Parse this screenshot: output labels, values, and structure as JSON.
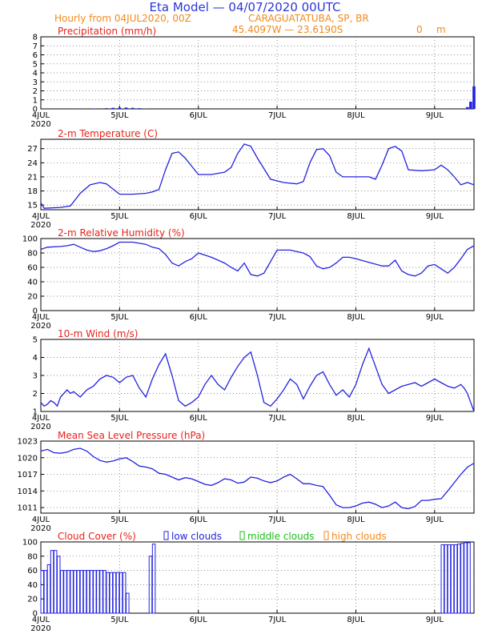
{
  "header": {
    "title": "Eta Model — 04/07/2020 00UTC",
    "subtitle": "Hourly from 04JUL2020, 00Z",
    "location": "CARAGUATATUBA, SP, BR",
    "coords": "45.4097W — 23.6190S",
    "elevation": "0",
    "elevation_unit": "m"
  },
  "colors": {
    "title_blue": "#2b36d9",
    "header_orange": "#f08a1c",
    "panel_red": "#e8231a",
    "series_blue": "#2323e0",
    "low_clouds": "#2323e0",
    "middle_clouds": "#18c018",
    "high_clouds": "#f08a1c"
  },
  "x_axis": {
    "ticks": [
      "4JUL",
      "5JUL",
      "6JUL",
      "7JUL",
      "8JUL",
      "9JUL"
    ],
    "year": "2020",
    "range_hours": [
      0,
      132
    ]
  },
  "chart_data": [
    {
      "type": "bar",
      "title": "Precipitation (mm/h)",
      "ylim": [
        0,
        8
      ],
      "yticks": [
        0,
        1,
        2,
        3,
        4,
        5,
        6,
        7,
        8
      ],
      "x": [
        0,
        4,
        8,
        12,
        16,
        20,
        22,
        24,
        26,
        28,
        30,
        32,
        36,
        48,
        60,
        72,
        84,
        96,
        108,
        120,
        130,
        131,
        132
      ],
      "values": [
        0,
        0,
        0,
        0.02,
        0.05,
        0.08,
        0.12,
        0.15,
        0.15,
        0.12,
        0.08,
        0.02,
        0,
        0,
        0,
        0,
        0,
        0,
        0,
        0,
        0.2,
        0.8,
        2.5
      ]
    },
    {
      "type": "line",
      "title": "2-m Temperature (C)",
      "ylim": [
        14,
        29
      ],
      "yticks": [
        15,
        18,
        21,
        24,
        27
      ],
      "x": [
        0,
        1,
        6,
        9,
        12,
        15,
        18,
        20,
        24,
        28,
        32,
        34,
        36,
        38,
        40,
        42,
        44,
        48,
        52,
        56,
        58,
        60,
        62,
        64,
        66,
        70,
        74,
        78,
        80,
        82,
        84,
        86,
        88,
        90,
        92,
        96,
        100,
        102,
        104,
        106,
        108,
        110,
        112,
        116,
        120,
        122,
        124,
        126,
        128,
        130,
        132
      ],
      "values": [
        15.5,
        14.3,
        14.5,
        14.8,
        17.5,
        19.3,
        19.8,
        19.5,
        17.3,
        17.3,
        17.5,
        17.8,
        18.3,
        22.5,
        26.0,
        26.3,
        25.0,
        21.5,
        21.5,
        22.0,
        23.0,
        26.0,
        28.0,
        27.5,
        25.0,
        20.5,
        19.8,
        19.5,
        20.0,
        24.0,
        26.8,
        27.0,
        25.5,
        22.0,
        21.0,
        21.0,
        21.0,
        20.5,
        23.5,
        27.0,
        27.5,
        26.5,
        22.5,
        22.3,
        22.5,
        23.5,
        22.5,
        21.0,
        19.3,
        19.8,
        19.3
      ]
    },
    {
      "type": "line",
      "title": "2-m Relative Humidity (%)",
      "ylim": [
        0,
        100
      ],
      "yticks": [
        0,
        20,
        40,
        60,
        80,
        100
      ],
      "x": [
        0,
        2,
        6,
        8,
        10,
        12,
        14,
        16,
        18,
        20,
        22,
        24,
        28,
        32,
        34,
        36,
        38,
        40,
        42,
        44,
        46,
        48,
        52,
        56,
        58,
        60,
        62,
        64,
        66,
        68,
        72,
        76,
        78,
        80,
        82,
        84,
        86,
        88,
        90,
        92,
        94,
        96,
        100,
        104,
        106,
        108,
        110,
        112,
        114,
        116,
        118,
        120,
        122,
        124,
        126,
        128,
        130,
        132
      ],
      "values": [
        85,
        88,
        89,
        90,
        92,
        88,
        84,
        82,
        83,
        86,
        90,
        95,
        95,
        92,
        88,
        86,
        78,
        66,
        62,
        68,
        72,
        80,
        74,
        66,
        60,
        55,
        66,
        50,
        48,
        52,
        84,
        84,
        82,
        80,
        75,
        62,
        58,
        60,
        66,
        74,
        74,
        72,
        67,
        62,
        62,
        70,
        55,
        50,
        48,
        52,
        62,
        64,
        58,
        52,
        60,
        72,
        85,
        90
      ]
    },
    {
      "type": "line",
      "title": "10-m Wind (m/s)",
      "ylim": [
        1,
        5
      ],
      "yticks": [
        1,
        2,
        3,
        4,
        5
      ],
      "x": [
        0,
        1,
        2,
        3,
        4,
        5,
        6,
        8,
        9,
        10,
        12,
        14,
        16,
        18,
        20,
        22,
        24,
        26,
        28,
        30,
        32,
        34,
        36,
        38,
        40,
        42,
        44,
        46,
        48,
        50,
        52,
        54,
        56,
        58,
        60,
        62,
        64,
        66,
        68,
        70,
        72,
        74,
        76,
        78,
        80,
        82,
        84,
        86,
        88,
        90,
        92,
        94,
        96,
        98,
        100,
        102,
        104,
        106,
        108,
        110,
        112,
        114,
        116,
        118,
        120,
        122,
        124,
        126,
        128,
        129,
        130,
        131,
        132
      ],
      "values": [
        1.5,
        1.3,
        1.4,
        1.6,
        1.5,
        1.3,
        1.8,
        2.2,
        2.0,
        2.1,
        1.8,
        2.2,
        2.4,
        2.8,
        3.0,
        2.9,
        2.6,
        2.9,
        3.0,
        2.3,
        1.8,
        2.8,
        3.6,
        4.2,
        3.0,
        1.6,
        1.3,
        1.5,
        1.8,
        2.5,
        3.0,
        2.5,
        2.2,
        2.9,
        3.5,
        4.0,
        4.3,
        3.0,
        1.5,
        1.3,
        1.7,
        2.2,
        2.8,
        2.5,
        1.7,
        2.4,
        3.0,
        3.2,
        2.5,
        1.9,
        2.2,
        1.8,
        2.5,
        3.6,
        4.5,
        3.5,
        2.5,
        2.0,
        2.2,
        2.4,
        2.5,
        2.6,
        2.4,
        2.6,
        2.8,
        2.6,
        2.4,
        2.3,
        2.5,
        2.3,
        2.0,
        1.5,
        1.0
      ]
    },
    {
      "type": "line",
      "title": "Mean Sea Level Pressure (hPa)",
      "ylim": [
        1010,
        1023
      ],
      "yticks": [
        1011,
        1014,
        1017,
        1020,
        1023
      ],
      "x": [
        0,
        2,
        4,
        6,
        8,
        10,
        12,
        14,
        16,
        18,
        20,
        22,
        24,
        26,
        28,
        30,
        32,
        34,
        36,
        38,
        40,
        42,
        44,
        46,
        48,
        50,
        52,
        54,
        56,
        58,
        60,
        62,
        64,
        66,
        68,
        70,
        72,
        74,
        76,
        78,
        80,
        82,
        84,
        86,
        88,
        90,
        92,
        94,
        96,
        98,
        100,
        102,
        104,
        106,
        108,
        110,
        112,
        114,
        116,
        118,
        120,
        122,
        124,
        126,
        128,
        130,
        132
      ],
      "values": [
        1021.2,
        1021.5,
        1020.9,
        1020.8,
        1021.0,
        1021.5,
        1021.7,
        1021.2,
        1020.2,
        1019.5,
        1019.2,
        1019.4,
        1019.8,
        1020.0,
        1019.3,
        1018.5,
        1018.3,
        1018.0,
        1017.2,
        1017.0,
        1016.5,
        1016.0,
        1016.4,
        1016.2,
        1015.7,
        1015.2,
        1015.0,
        1015.5,
        1016.2,
        1016.0,
        1015.4,
        1015.6,
        1016.5,
        1016.3,
        1015.8,
        1015.5,
        1015.8,
        1016.5,
        1017.0,
        1016.2,
        1015.3,
        1015.3,
        1015.0,
        1014.8,
        1013.2,
        1011.5,
        1011.0,
        1011.0,
        1011.3,
        1011.8,
        1012.0,
        1011.6,
        1011.0,
        1011.3,
        1012.0,
        1011.0,
        1010.8,
        1011.2,
        1012.3,
        1012.3,
        1012.5,
        1012.6,
        1014.0,
        1015.5,
        1017.0,
        1018.3,
        1019.0
      ]
    },
    {
      "type": "bar",
      "title": "Cloud Cover (%)",
      "ylim": [
        0,
        100
      ],
      "yticks": [
        0,
        20,
        40,
        60,
        80,
        100
      ],
      "legend": [
        "low clouds",
        "middle clouds",
        "high clouds"
      ],
      "series": [
        {
          "name": "low clouds",
          "x": [
            0,
            1,
            2,
            3,
            4,
            5,
            6,
            7,
            8,
            9,
            10,
            11,
            12,
            13,
            14,
            15,
            16,
            17,
            18,
            19,
            20,
            21,
            22,
            23,
            24,
            25,
            26,
            33,
            34,
            122,
            123,
            124,
            125,
            126,
            127,
            128,
            129,
            130
          ],
          "values": [
            60,
            60,
            68,
            88,
            88,
            80,
            60,
            60,
            60,
            60,
            60,
            60,
            60,
            60,
            60,
            60,
            60,
            60,
            60,
            60,
            57,
            57,
            57,
            57,
            57,
            57,
            28,
            80,
            97,
            96,
            96,
            96,
            96,
            96,
            97,
            98,
            99,
            99
          ]
        },
        {
          "name": "middle clouds",
          "x": [],
          "values": []
        },
        {
          "name": "high clouds",
          "x": [],
          "values": []
        }
      ]
    }
  ]
}
